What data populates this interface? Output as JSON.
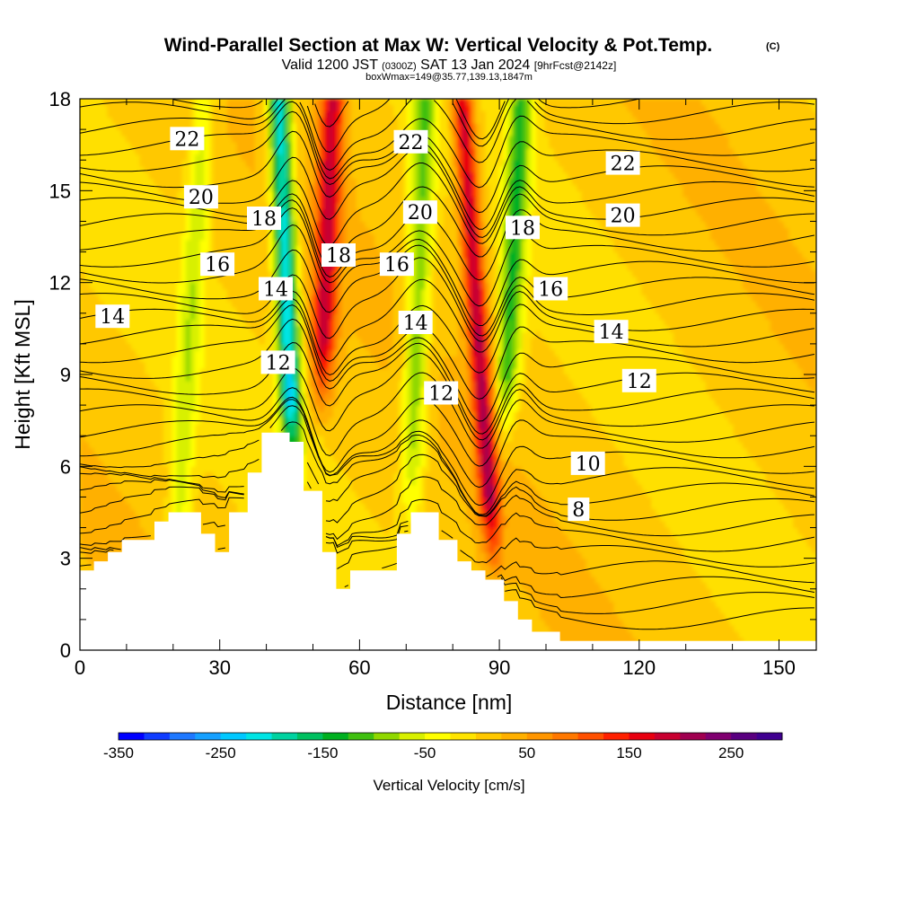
{
  "chart_data": {
    "type": "heatmap",
    "title": "Wind-Parallel Section at Max W: Vertical Velocity & Pot.Temp.",
    "title_mark": "(C)",
    "subtitle": {
      "part1": "Valid 1200 JST",
      "part2": "(0300Z)",
      "part3": "SAT 13 Jan 2024",
      "part4": "[9hrFcst@2142z]"
    },
    "subtitle2": "boxWmax=149@35.77,139.13,1847m",
    "xlabel": "Distance [nm]",
    "ylabel": "Height [Kft MSL]",
    "xlim": [
      0,
      158
    ],
    "ylim": [
      0,
      18
    ],
    "x_ticks": [
      0,
      30,
      60,
      90,
      120,
      150
    ],
    "y_ticks": [
      0,
      3,
      6,
      9,
      12,
      15,
      18
    ],
    "grid": false,
    "colorbar": {
      "label": "Vertical Velocity [cm/s]",
      "range": [
        -350,
        300
      ],
      "step": 25,
      "tick_labels": [
        -350,
        -250,
        -150,
        -50,
        50,
        150,
        250
      ],
      "colors": [
        "#0000ff",
        "#0f3cff",
        "#1e78ff",
        "#15a0ff",
        "#00c8ff",
        "#00e4e4",
        "#00d2a0",
        "#00c060",
        "#00b020",
        "#40c010",
        "#90d800",
        "#d8f000",
        "#ffff00",
        "#ffe400",
        "#ffc800",
        "#ffb000",
        "#ff9600",
        "#ff7800",
        "#ff5000",
        "#ff2000",
        "#e80010",
        "#c80030",
        "#a00050",
        "#800070",
        "#5a0080",
        "#400090"
      ]
    },
    "contour_field": "Potential Temperature",
    "contour_labels": [
      {
        "text": "22",
        "x": 23,
        "y": 16.7
      },
      {
        "text": "20",
        "x": 26,
        "y": 14.8
      },
      {
        "text": "18",
        "x": 39.5,
        "y": 14.1
      },
      {
        "text": "16",
        "x": 29.5,
        "y": 12.6
      },
      {
        "text": "14",
        "x": 42,
        "y": 11.8
      },
      {
        "text": "14",
        "x": 7,
        "y": 10.9
      },
      {
        "text": "12",
        "x": 42.5,
        "y": 9.4
      },
      {
        "text": "18",
        "x": 55.5,
        "y": 12.9
      },
      {
        "text": "22",
        "x": 71,
        "y": 16.6
      },
      {
        "text": "20",
        "x": 73,
        "y": 14.3
      },
      {
        "text": "16",
        "x": 68,
        "y": 12.6
      },
      {
        "text": "14",
        "x": 72,
        "y": 10.7
      },
      {
        "text": "12",
        "x": 77.5,
        "y": 8.4
      },
      {
        "text": "18",
        "x": 95,
        "y": 13.8
      },
      {
        "text": "16",
        "x": 101,
        "y": 11.8
      },
      {
        "text": "22",
        "x": 116.5,
        "y": 15.9
      },
      {
        "text": "20",
        "x": 116.5,
        "y": 14.2
      },
      {
        "text": "14",
        "x": 114,
        "y": 10.4
      },
      {
        "text": "12",
        "x": 120,
        "y": 8.8
      },
      {
        "text": "10",
        "x": 109,
        "y": 6.1
      },
      {
        "text": "8",
        "x": 107,
        "y": 4.6
      }
    ],
    "terrain_profile": [
      [
        0,
        2.6
      ],
      [
        3,
        2.6
      ],
      [
        3,
        2.9
      ],
      [
        6,
        2.9
      ],
      [
        6,
        3.2
      ],
      [
        9,
        3.2
      ],
      [
        9,
        3.6
      ],
      [
        16,
        3.6
      ],
      [
        16,
        4.2
      ],
      [
        19,
        4.2
      ],
      [
        19,
        4.5
      ],
      [
        26,
        4.5
      ],
      [
        26,
        3.8
      ],
      [
        29,
        3.8
      ],
      [
        29,
        3.2
      ],
      [
        32,
        3.2
      ],
      [
        32,
        4.5
      ],
      [
        36,
        4.5
      ],
      [
        36,
        5.8
      ],
      [
        39,
        5.8
      ],
      [
        39,
        7.1
      ],
      [
        45,
        7.1
      ],
      [
        45,
        6.8
      ],
      [
        48,
        6.8
      ],
      [
        48,
        5.2
      ],
      [
        52,
        5.2
      ],
      [
        52,
        3.2
      ],
      [
        55,
        3.2
      ],
      [
        55,
        2.0
      ],
      [
        58,
        2.0
      ],
      [
        58,
        2.6
      ],
      [
        68,
        2.6
      ],
      [
        68,
        3.8
      ],
      [
        71,
        3.8
      ],
      [
        71,
        4.5
      ],
      [
        77,
        4.5
      ],
      [
        77,
        3.6
      ],
      [
        81,
        3.6
      ],
      [
        81,
        2.9
      ],
      [
        84,
        2.9
      ],
      [
        84,
        2.6
      ],
      [
        87,
        2.6
      ],
      [
        87,
        2.3
      ],
      [
        91,
        2.3
      ],
      [
        91,
        1.6
      ],
      [
        94,
        1.6
      ],
      [
        94,
        1.0
      ],
      [
        97,
        1.0
      ],
      [
        97,
        0.6
      ],
      [
        100,
        0.6
      ],
      [
        100,
        0.6
      ],
      [
        103,
        0.6
      ],
      [
        103,
        0.3
      ],
      [
        158,
        0.3
      ]
    ]
  }
}
